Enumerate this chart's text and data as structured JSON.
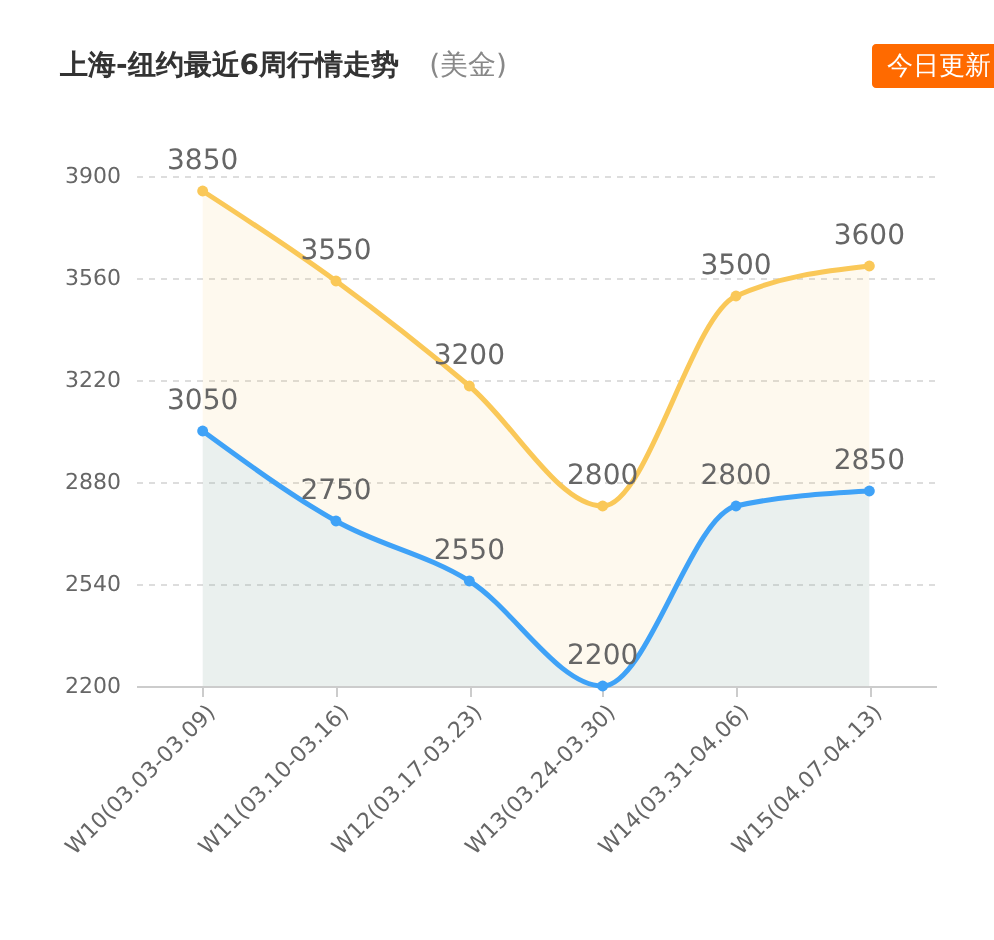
{
  "chart_data": {
    "type": "area",
    "title": "上海-纽约最近6周行情走势",
    "subtitle": "(美金)",
    "annotations": [
      "今日更新"
    ],
    "categories": [
      "W10(03.03-03.09)",
      "W11(03.10-03.16)",
      "W12(03.17-03.23)",
      "W13(03.24-03.30)",
      "W14(03.31-04.06)",
      "W15(04.07-04.13)"
    ],
    "series": [
      {
        "color": "#fac858",
        "values": [
          3850,
          3550,
          3200,
          2800,
          3500,
          3600
        ]
      },
      {
        "color": "#3fa2f7",
        "values": [
          3050,
          2750,
          2550,
          2200,
          2800,
          2850
        ]
      }
    ],
    "ylim": [
      2200,
      3900
    ],
    "yticks": [
      2200,
      2540,
      2880,
      3220,
      3560,
      3900
    ],
    "grid": "y",
    "marker": "circle",
    "line_style": "solid",
    "data_labels": true
  }
}
